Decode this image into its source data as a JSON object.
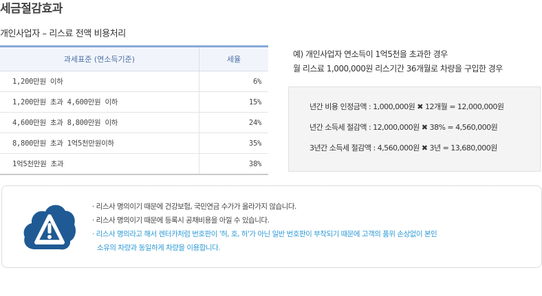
{
  "page": {
    "title": "세금절감효과",
    "subtitle": "개인사업자 – 리스료 전액 비용처리"
  },
  "tax_table": {
    "headers": [
      "과세표준 (연소득기준)",
      "세율"
    ],
    "rows": [
      {
        "standard": "1,200만원 이하",
        "rate": "6%"
      },
      {
        "standard": "1,200만원 초과 4,600만원 이하",
        "rate": "15%"
      },
      {
        "standard": "4,600만원 초과 8,800만원 이하",
        "rate": "24%"
      },
      {
        "standard": "8,800만원 초과 1억5천만원이하",
        "rate": "35%"
      },
      {
        "standard": "1억5천만원 초과",
        "rate": "38%"
      }
    ]
  },
  "example": {
    "line1": "예) 개인사업자 연소득이 1억5천을 초과한 경우",
    "line2": "월 리스료 1,000,000원 리스기간 36개월로 차량을 구입한 경우"
  },
  "calculation": [
    "년간 비용 인정금액 : 1,000,000원 ✖ 12개월 = 12,000,000원",
    "년간 소득세 절감액 : 12,000,000원 ✖ 38% = 4,560,000원",
    "3년간 소득세 절감액 : 4,560,000원 ✖ 3년 = 13,680,000원"
  ],
  "notice": {
    "icon": "alert-cloud-icon",
    "items": [
      {
        "text": "· 리스사 명의이기 때문에 건강보험, 국민연금 수가가 올라가지 않습니다.",
        "highlight": false
      },
      {
        "text": "· 리스사 명의이기 때문에 등록시 공채비용을 아낄 수 있습니다.",
        "highlight": false
      },
      {
        "text": "· 리스사 명의라고 해서 렌터카처럼 번호판이 '허, 호, 허'가 아닌 일반 번호판이 부착되기 때문에 고객의 품위 손상없이 본인",
        "highlight": true
      },
      {
        "text": "소유의 차량과 동일하게 차량을 이용합니다.",
        "highlight": true
      }
    ]
  },
  "colors": {
    "header_bg": "#f1f5fb",
    "header_text": "#4d6fa5",
    "header_border": "#87a9d6",
    "highlight_text": "#2d9ad6",
    "icon_cloud": "#1f5a94"
  }
}
